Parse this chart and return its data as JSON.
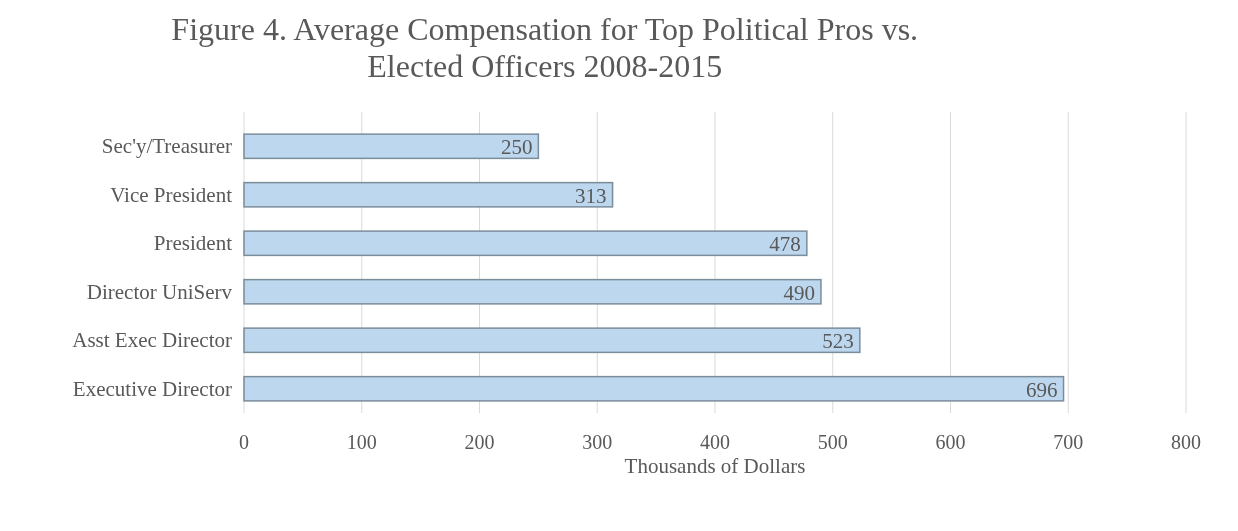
{
  "chart_data": {
    "type": "bar",
    "orientation": "horizontal",
    "title": "Figure 4. Average Compensation for Top Political Pros vs. Elected Officers 2008-2015",
    "xlabel": "Thousands of Dollars",
    "categories": [
      "Sec'y/Treasurer",
      "Vice President",
      "President",
      "Director UniServ",
      "Asst Exec Director",
      "Executive Director"
    ],
    "values": [
      250,
      313,
      478,
      490,
      523,
      696
    ],
    "color": "#bdd7ee",
    "data_labels": true,
    "xlim": [
      0,
      800
    ],
    "xticks": [
      0,
      100,
      200,
      300,
      400,
      500,
      600,
      700,
      800
    ],
    "grid": "x"
  }
}
